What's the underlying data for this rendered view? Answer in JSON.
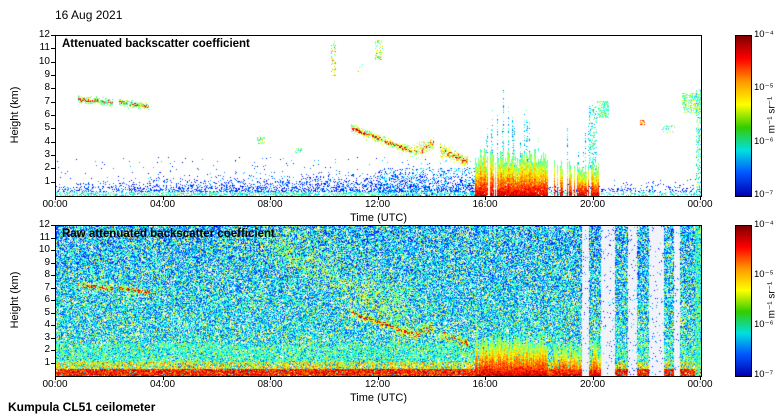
{
  "page": {
    "date_label": "16 Aug 2021",
    "footer": "Kumpula CL51 ceilometer"
  },
  "chart_data": [
    {
      "type": "heatmap",
      "panel": "attenuated",
      "title": "Attenuated backscatter coefficient",
      "xlabel": "Time (UTC)",
      "ylabel": "Height (km)",
      "x_ticks": [
        "00:00",
        "04:00",
        "08:00",
        "12:00",
        "16:00",
        "20:00",
        "00:00"
      ],
      "x_range_hours": [
        0,
        24
      ],
      "y_ticks": [
        1,
        2,
        3,
        4,
        5,
        6,
        7,
        8,
        9,
        10,
        11,
        12
      ],
      "y_range_km": [
        0,
        12
      ],
      "background": "#ffffff",
      "colorbar": {
        "unit": "m⁻¹ sr⁻¹",
        "scale": "log",
        "ticks": [
          "10⁻⁴",
          "10⁻⁵",
          "10⁻⁶",
          "10⁻⁷"
        ],
        "range": [
          1e-07,
          0.0001
        ],
        "gradient": [
          "#7f0000",
          "#ff0000",
          "#ff9900",
          "#ffff00",
          "#33cc00",
          "#00e0e0",
          "#0055ff",
          "#0000b0"
        ]
      },
      "features": [
        {
          "kind": "bl",
          "t": [
            0,
            15.7
          ],
          "top": 1.1,
          "amp": 0.9,
          "density": 0.6,
          "v": [
            0.08,
            0.3
          ],
          "jitter": 0.5
        },
        {
          "kind": "bl",
          "t": [
            18.3,
            24
          ],
          "top": 1.2,
          "amp": 0,
          "density": 0.4,
          "v": [
            0.08,
            0.28
          ],
          "jitter": 0.5
        },
        {
          "kind": "blob",
          "t": [
            0,
            15.5
          ],
          "h": [
            1.2,
            2.9
          ],
          "density": 0.015,
          "v": [
            0.08,
            0.35
          ]
        },
        {
          "kind": "blob",
          "t": [
            12,
            15.6
          ],
          "h": [
            0,
            2.1
          ],
          "density": 0.2,
          "v": [
            0.1,
            0.4
          ]
        },
        {
          "kind": "cloudline",
          "t": [
            0.85,
            2.1
          ],
          "h": [
            7.25,
            7.0
          ],
          "th": 0.3,
          "density": 0.95,
          "v": [
            0.4,
            0.62
          ],
          "cv": [
            0.75,
            0.95
          ],
          "coreP": 0.45,
          "jitter": 0.12
        },
        {
          "kind": "cloudline",
          "t": [
            2.35,
            3.45
          ],
          "h": [
            7.05,
            6.7
          ],
          "th": 0.3,
          "density": 0.95,
          "v": [
            0.4,
            0.62
          ],
          "cv": [
            0.75,
            0.95
          ],
          "coreP": 0.45,
          "jitter": 0.12
        },
        {
          "kind": "blob",
          "t": [
            7.5,
            7.75
          ],
          "h": [
            3.9,
            4.4
          ],
          "density": 0.5,
          "v": [
            0.3,
            0.7
          ]
        },
        {
          "kind": "blob",
          "t": [
            8.9,
            9.15
          ],
          "h": [
            3.2,
            3.6
          ],
          "density": 0.45,
          "v": [
            0.3,
            0.65
          ]
        },
        {
          "kind": "blob",
          "t": [
            10.25,
            10.4
          ],
          "h": [
            9.0,
            11.6
          ],
          "density": 0.25,
          "v": [
            0.35,
            0.8
          ]
        },
        {
          "kind": "blob",
          "t": [
            11.25,
            11.4
          ],
          "h": [
            9.3,
            9.9
          ],
          "density": 0.3,
          "v": [
            0.4,
            0.7
          ]
        },
        {
          "kind": "blob",
          "t": [
            11.9,
            12.15
          ],
          "h": [
            10.2,
            11.7
          ],
          "density": 0.3,
          "v": [
            0.35,
            0.8
          ]
        },
        {
          "kind": "cloudline",
          "t": [
            11.0,
            13.25
          ],
          "h": [
            5.05,
            3.35
          ],
          "th": 0.35,
          "density": 0.9,
          "v": [
            0.45,
            0.65
          ],
          "cv": [
            0.8,
            0.97
          ],
          "coreP": 0.5,
          "jitter": 0.15
        },
        {
          "kind": "cloudline",
          "t": [
            13.35,
            14.05
          ],
          "h": [
            3.3,
            3.9
          ],
          "th": 0.5,
          "density": 0.8,
          "v": [
            0.45,
            0.7
          ],
          "cv": [
            0.8,
            0.95
          ],
          "coreP": 0.3,
          "jitter": 0.25
        },
        {
          "kind": "cloudline",
          "t": [
            14.3,
            15.3
          ],
          "h": [
            3.4,
            2.6
          ],
          "th": 0.5,
          "density": 0.8,
          "v": [
            0.45,
            0.7
          ],
          "cv": [
            0.8,
            0.95
          ],
          "coreP": 0.35,
          "jitter": 0.2
        },
        {
          "kind": "precip",
          "t": [
            15.62,
            18.3
          ],
          "h": [
            0,
            3.0
          ],
          "gap": 0.04,
          "plume": 0.3
        },
        {
          "kind": "precip",
          "t": [
            18.55,
            20.25
          ],
          "h": [
            0,
            2.3
          ],
          "gap": 0.3,
          "plume": 0.15
        },
        {
          "kind": "blob",
          "t": [
            19.85,
            20.1
          ],
          "h": [
            2.0,
            6.8
          ],
          "density": 0.3,
          "v": [
            0.25,
            0.55
          ]
        },
        {
          "kind": "blob",
          "t": [
            20.15,
            20.55
          ],
          "h": [
            5.8,
            7.1
          ],
          "density": 0.55,
          "v": [
            0.35,
            0.6
          ]
        },
        {
          "kind": "blob",
          "t": [
            21.75,
            21.9
          ],
          "h": [
            5.3,
            5.65
          ],
          "density": 0.6,
          "v": [
            0.6,
            0.9
          ]
        },
        {
          "kind": "blob",
          "t": [
            22.55,
            23.0
          ],
          "h": [
            4.7,
            5.3
          ],
          "density": 0.25,
          "v": [
            0.3,
            0.6
          ]
        },
        {
          "kind": "blob",
          "t": [
            23.3,
            24
          ],
          "h": [
            6.2,
            7.7
          ],
          "density": 0.5,
          "v": [
            0.35,
            0.65
          ]
        },
        {
          "kind": "blob",
          "t": [
            23.82,
            24
          ],
          "h": [
            0,
            8.0
          ],
          "density": 0.35,
          "v": [
            0.25,
            0.6
          ]
        }
      ]
    },
    {
      "type": "heatmap",
      "panel": "raw",
      "title": "Raw attenuated backscatter coefficient",
      "xlabel": "Time (UTC)",
      "ylabel": "Height (km)",
      "x_ticks": [
        "00:00",
        "04:00",
        "08:00",
        "12:00",
        "16:00",
        "20:00",
        "00:00"
      ],
      "x_range_hours": [
        0,
        24
      ],
      "y_ticks": [
        1,
        2,
        3,
        4,
        5,
        6,
        7,
        8,
        9,
        10,
        11,
        12
      ],
      "y_range_km": [
        0,
        12
      ],
      "background": "#ffffff",
      "colorbar": {
        "unit": "m⁻¹ sr⁻¹",
        "scale": "log",
        "ticks": [
          "10⁻⁴",
          "10⁻⁵",
          "10⁻⁶",
          "10⁻⁷"
        ],
        "range": [
          1e-07,
          0.0001
        ],
        "gradient": [
          "#7f0000",
          "#ff0000",
          "#ff9900",
          "#ffff00",
          "#33cc00",
          "#00e0e0",
          "#0055ff",
          "#0000b0"
        ]
      },
      "features": [
        {
          "kind": "noise",
          "t": [
            0,
            24
          ],
          "density": 0.82,
          "v": [
            0.12,
            0.5
          ],
          "pow": 1.2,
          "sparkle": 0.1,
          "sv": [
            0.55,
            0.7
          ],
          "grad": 0.08
        },
        {
          "kind": "blob",
          "t": [
            0,
            24
          ],
          "h": [
            0.9,
            2.6
          ],
          "density": 0.5,
          "v": [
            0.32,
            0.58
          ]
        },
        {
          "kind": "blob",
          "t": [
            0,
            24
          ],
          "h": [
            0.5,
            1.1
          ],
          "density": 0.6,
          "v": [
            0.5,
            0.78
          ]
        },
        {
          "kind": "blob",
          "t": [
            0,
            24
          ],
          "h": [
            0,
            0.55
          ],
          "density": 0.95,
          "v": [
            0.72,
            0.97
          ]
        },
        {
          "kind": "cloudline",
          "t": [
            0.85,
            2.1
          ],
          "h": [
            7.25,
            7.0
          ],
          "th": 0.3,
          "density": 0.95,
          "v": [
            0.45,
            0.65
          ],
          "cv": [
            0.78,
            0.97
          ],
          "coreP": 0.5,
          "jitter": 0.12
        },
        {
          "kind": "cloudline",
          "t": [
            2.35,
            3.45
          ],
          "h": [
            7.05,
            6.7
          ],
          "th": 0.3,
          "density": 0.95,
          "v": [
            0.45,
            0.65
          ],
          "cv": [
            0.78,
            0.97
          ],
          "coreP": 0.5,
          "jitter": 0.12
        },
        {
          "kind": "cloudline",
          "t": [
            8.5,
            13.5
          ],
          "h": [
            11.8,
            5.5
          ],
          "th": 2.5,
          "density": 0.18,
          "v": [
            0.42,
            0.6
          ],
          "cv": [
            0.5,
            0.62
          ],
          "coreP": 0.1,
          "jitter": 1.0
        },
        {
          "kind": "cloudline",
          "t": [
            7.6,
            13.0
          ],
          "h": [
            11.3,
            4.3
          ],
          "th": 1.5,
          "density": 0.3,
          "v": [
            0.45,
            0.66
          ],
          "cv": [
            0.6,
            0.75
          ],
          "coreP": 0.2,
          "jitter": 0.7
        },
        {
          "kind": "cloudline",
          "t": [
            11.0,
            13.25
          ],
          "h": [
            5.05,
            3.35
          ],
          "th": 0.35,
          "density": 0.9,
          "v": [
            0.5,
            0.68
          ],
          "cv": [
            0.82,
            0.97
          ],
          "coreP": 0.55,
          "jitter": 0.15
        },
        {
          "kind": "cloudline",
          "t": [
            13.35,
            14.05
          ],
          "h": [
            3.3,
            3.9
          ],
          "th": 0.5,
          "density": 0.8,
          "v": [
            0.5,
            0.7
          ],
          "cv": [
            0.8,
            0.95
          ],
          "coreP": 0.3,
          "jitter": 0.25
        },
        {
          "kind": "cloudline",
          "t": [
            14.3,
            15.3
          ],
          "h": [
            3.4,
            2.6
          ],
          "th": 0.5,
          "density": 0.8,
          "v": [
            0.5,
            0.7
          ],
          "cv": [
            0.8,
            0.95
          ],
          "coreP": 0.35,
          "jitter": 0.2
        },
        {
          "kind": "precip",
          "t": [
            15.62,
            18.3
          ],
          "h": [
            0,
            3.0
          ],
          "gap": 0.03,
          "plume": 0.3
        },
        {
          "kind": "precip",
          "t": [
            18.55,
            20.25
          ],
          "h": [
            0,
            2.4
          ],
          "gap": 0.2,
          "plume": 0.2
        },
        {
          "kind": "stripe",
          "t": [
            19.6,
            19.8
          ]
        },
        {
          "kind": "stripe",
          "t": [
            20.3,
            20.8
          ]
        },
        {
          "kind": "stripe",
          "t": [
            21.3,
            21.6
          ]
        },
        {
          "kind": "stripe",
          "t": [
            22.1,
            22.6
          ]
        },
        {
          "kind": "stripe",
          "t": [
            23.0,
            23.2
          ]
        },
        {
          "kind": "blob",
          "t": [
            23.78,
            24
          ],
          "h": [
            0,
            12
          ],
          "density": 0.75,
          "v": [
            0.3,
            0.56
          ]
        }
      ]
    }
  ]
}
